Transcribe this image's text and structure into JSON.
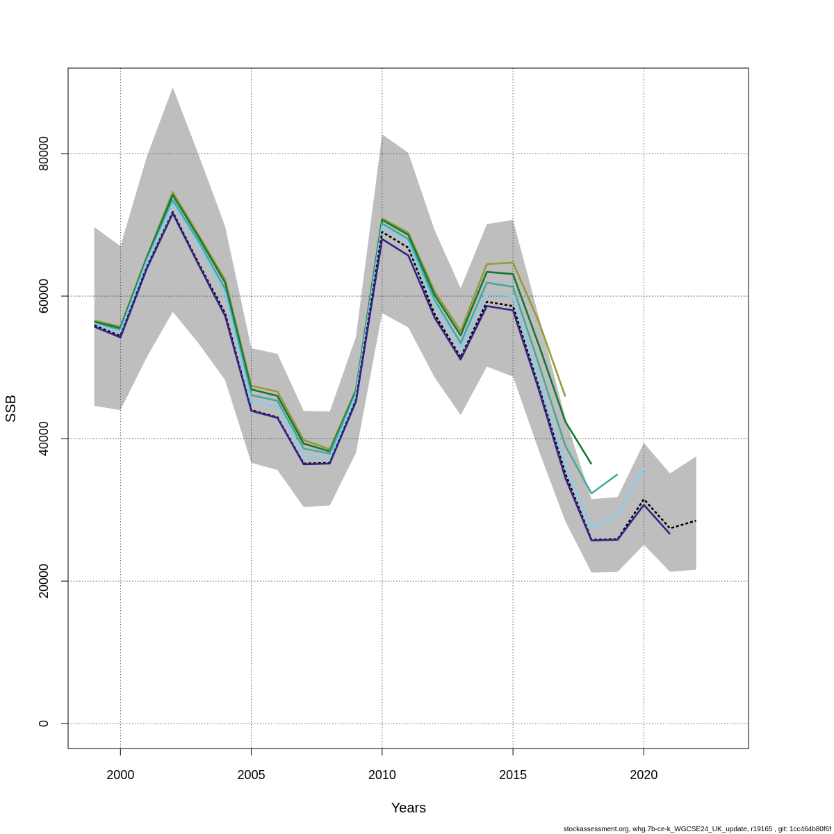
{
  "chart_data": {
    "type": "line",
    "title": "",
    "xlabel": "Years",
    "ylabel": "SSB",
    "xlim": [
      1998,
      2024
    ],
    "ylim": [
      -3500,
      92000
    ],
    "x_ticks": [
      2000,
      2005,
      2010,
      2015,
      2020
    ],
    "y_ticks": [
      0,
      20000,
      40000,
      60000,
      80000
    ],
    "grid": true,
    "confidence_band": {
      "color": "#bebebe",
      "x": [
        1999,
        2000,
        2001,
        2002,
        2003,
        2004,
        2005,
        2006,
        2007,
        2008,
        2009,
        2010,
        2011,
        2012,
        2013,
        2014,
        2015,
        2016,
        2017,
        2018,
        2019,
        2020,
        2021,
        2022
      ],
      "upper": [
        69700,
        67000,
        79500,
        89300,
        79700,
        69800,
        52700,
        51900,
        43900,
        43800,
        54300,
        82700,
        80100,
        69300,
        61100,
        70100,
        70700,
        56900,
        42900,
        31500,
        31800,
        39400,
        35100,
        37500
      ],
      "lower": [
        44600,
        44000,
        51400,
        57800,
        53300,
        48200,
        36600,
        35600,
        30400,
        30600,
        38000,
        57600,
        55600,
        48600,
        43300,
        50100,
        48700,
        38200,
        28400,
        21200,
        21300,
        25100,
        21300,
        21600
      ]
    },
    "series": [
      {
        "color": "#999933",
        "dashed": false,
        "x": [
          1999,
          2000,
          2001,
          2002,
          2003,
          2004,
          2005,
          2006,
          2007,
          2008,
          2009,
          2010,
          2011,
          2012,
          2013,
          2014,
          2015,
          2016,
          2017
        ],
        "values": [
          56600,
          55700,
          65500,
          74600,
          68500,
          62300,
          47400,
          46600,
          39800,
          38500,
          46900,
          70900,
          68900,
          60700,
          55100,
          64500,
          64700,
          56300,
          45900
        ]
      },
      {
        "color": "#117733",
        "dashed": false,
        "x": [
          1999,
          2000,
          2001,
          2002,
          2003,
          2004,
          2005,
          2006,
          2007,
          2008,
          2009,
          2010,
          2011,
          2012,
          2013,
          2014,
          2015,
          2016,
          2017,
          2018
        ],
        "values": [
          56400,
          55500,
          65300,
          74200,
          68200,
          61900,
          46900,
          46000,
          39300,
          38200,
          46700,
          70700,
          68600,
          60200,
          54500,
          63400,
          63100,
          53000,
          42400,
          36400
        ]
      },
      {
        "color": "#44aa99",
        "dashed": false,
        "x": [
          1999,
          2000,
          2001,
          2002,
          2003,
          2004,
          2005,
          2006,
          2007,
          2008,
          2009,
          2010,
          2011,
          2012,
          2013,
          2014,
          2015,
          2016,
          2017,
          2018,
          2019
        ],
        "values": [
          56200,
          55200,
          65000,
          73500,
          67600,
          61000,
          46100,
          45300,
          38600,
          37900,
          46400,
          70200,
          68000,
          59500,
          53400,
          61900,
          61300,
          50300,
          39000,
          32300,
          35000
        ]
      },
      {
        "color": "#88ccee",
        "dashed": false,
        "x": [
          1999,
          2000,
          2001,
          2002,
          2003,
          2004,
          2005,
          2006,
          2007,
          2008,
          2009,
          2010,
          2011,
          2012,
          2013,
          2014,
          2015,
          2016,
          2017,
          2018,
          2019,
          2020
        ],
        "values": [
          56100,
          55000,
          64700,
          73000,
          67100,
          60300,
          45300,
          44500,
          37500,
          37200,
          46100,
          69800,
          67500,
          58800,
          52500,
          60500,
          60000,
          48300,
          36300,
          27500,
          29200,
          35900
        ]
      },
      {
        "color": "#000000",
        "dashed": true,
        "x": [
          1999,
          2000,
          2001,
          2002,
          2003,
          2004,
          2005,
          2006,
          2007,
          2008,
          2009,
          2010,
          2011,
          2012,
          2013,
          2014,
          2015,
          2016,
          2017,
          2018,
          2019,
          2020,
          2021,
          2022
        ],
        "values": [
          55900,
          54400,
          64000,
          71800,
          64500,
          57600,
          44000,
          43000,
          36500,
          36600,
          45400,
          69000,
          66800,
          57500,
          51400,
          59200,
          58600,
          47100,
          35100,
          25800,
          25900,
          31500,
          27400,
          28500
        ]
      },
      {
        "color": "#332288",
        "dashed": false,
        "x": [
          1999,
          2000,
          2001,
          2002,
          2003,
          2004,
          2005,
          2006,
          2007,
          2008,
          2009,
          2010,
          2011,
          2012,
          2013,
          2014,
          2015,
          2016,
          2017,
          2018,
          2019,
          2020,
          2021
        ],
        "values": [
          55700,
          54200,
          63800,
          71600,
          64300,
          57200,
          43900,
          42900,
          36400,
          36500,
          45200,
          68000,
          65700,
          57000,
          51100,
          58600,
          58000,
          46700,
          34500,
          25700,
          25800,
          30700,
          26600
        ]
      }
    ]
  },
  "footer_text": "stockassessment.org, whg.7b-ce-k_WGCSE24_UK_update, r19165 , git: 1cc464b80f6f"
}
